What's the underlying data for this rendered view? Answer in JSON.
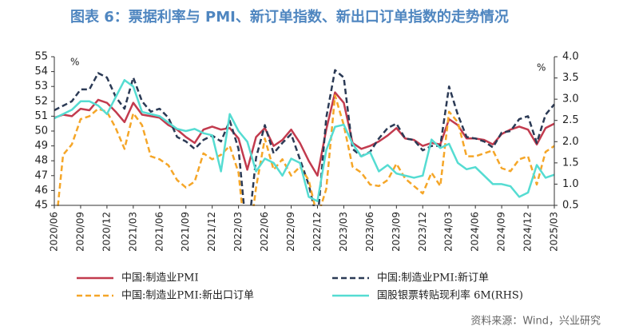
{
  "chart_data": {
    "type": "line",
    "title": "图表 6：票据利率与 PMI、新订单指数、新出口订单指数的走势情况",
    "source": "资料来源：Wind，兴业研究",
    "y_unit": "%",
    "y2_unit": "%",
    "categories": [
      "2020/06",
      null,
      null,
      "2020/09",
      null,
      null,
      "2020/12",
      null,
      null,
      "2021/03",
      null,
      null,
      "2021/06",
      null,
      null,
      "2021/09",
      null,
      null,
      "2021/12",
      null,
      null,
      "2022/03",
      null,
      null,
      "2022/06",
      null,
      null,
      "2022/09",
      null,
      null,
      "2022/12",
      null,
      null,
      "2023/03",
      null,
      null,
      "2023/06",
      null,
      null,
      "2023/09",
      null,
      null,
      "2023/12",
      null,
      null,
      "2024/03",
      null,
      null,
      "2024/06",
      null,
      null,
      "2024/09",
      null,
      null,
      "2024/12",
      null,
      null,
      "2025/03"
    ],
    "ylim": [
      45,
      55
    ],
    "yticks": [
      45,
      46,
      47,
      48,
      49,
      50,
      51,
      52,
      53,
      54,
      55
    ],
    "y2lim": [
      0.5,
      4.0
    ],
    "y2ticks": [
      0.5,
      {
        "value": 1.0,
        "label": "1.0"
      },
      1.5,
      {
        "value": 2.0,
        "label": "2.0"
      },
      2.5,
      {
        "value": 3.0,
        "label": "3.0"
      },
      3.5,
      {
        "value": 4.0,
        "label": "4.0"
      }
    ],
    "series": [
      {
        "name": "中国:制造业PMI",
        "color": "#c23b4e",
        "dash": false,
        "values": [
          50.9,
          51.1,
          51.0,
          51.5,
          51.4,
          52.1,
          51.9,
          51.3,
          50.6,
          51.9,
          51.1,
          51.0,
          50.9,
          50.4,
          50.1,
          49.6,
          49.2,
          50.1,
          50.3,
          50.1,
          50.2,
          49.5,
          47.4,
          49.6,
          50.2,
          49.0,
          49.4,
          50.1,
          49.2,
          48.0,
          47.0,
          50.1,
          52.6,
          51.9,
          49.2,
          48.8,
          49.0,
          49.3,
          49.7,
          50.2,
          49.5,
          49.4,
          49.0,
          49.2,
          49.1,
          50.8,
          50.4,
          49.5,
          49.5,
          49.4,
          49.1,
          49.8,
          50.1,
          50.3,
          50.1,
          49.1,
          50.2,
          50.5
        ]
      },
      {
        "name": "中国:制造业PMI:新订单",
        "color": "#2b3a55",
        "dash": true,
        "values": [
          51.4,
          51.7,
          52.0,
          52.8,
          52.8,
          53.9,
          53.6,
          52.3,
          51.5,
          53.6,
          52.0,
          51.3,
          51.5,
          50.9,
          49.6,
          49.3,
          48.8,
          49.4,
          49.7,
          49.3,
          50.7,
          48.8,
          42.6,
          48.2,
          50.4,
          48.5,
          49.2,
          49.8,
          48.1,
          46.4,
          43.9,
          50.9,
          54.1,
          53.6,
          48.8,
          48.3,
          48.6,
          49.5,
          50.2,
          50.5,
          49.5,
          49.4,
          48.7,
          49.0,
          49.0,
          53.0,
          51.1,
          49.6,
          49.5,
          49.3,
          48.9,
          49.9,
          50.0,
          50.8,
          51.0,
          49.2,
          51.1,
          51.8
        ]
      },
      {
        "name": "中国:制造业PMI:新出口订单",
        "color": "#f5a628",
        "dash": true,
        "values": [
          42.6,
          48.4,
          49.1,
          50.8,
          51.0,
          51.5,
          51.3,
          50.2,
          48.8,
          51.2,
          50.4,
          48.3,
          48.1,
          47.7,
          46.7,
          46.2,
          46.6,
          48.5,
          48.1,
          48.4,
          49.0,
          47.2,
          41.6,
          46.2,
          49.5,
          47.4,
          48.1,
          47.0,
          47.6,
          46.7,
          44.2,
          46.1,
          52.4,
          50.4,
          47.6,
          47.2,
          46.4,
          46.3,
          46.7,
          47.8,
          46.8,
          46.3,
          45.8,
          47.2,
          46.3,
          51.3,
          50.6,
          48.3,
          48.3,
          48.5,
          48.7,
          47.5,
          47.3,
          48.1,
          48.3,
          46.4,
          48.6,
          49.0
        ]
      },
      {
        "name": "国股银票转贴现利率 6M(RHS)",
        "color": "#55dcd2",
        "dash": false,
        "axis": "y2",
        "values": [
          2.55,
          2.65,
          2.75,
          2.95,
          2.95,
          2.85,
          2.65,
          3.05,
          3.45,
          3.3,
          2.7,
          2.65,
          2.6,
          2.45,
          2.3,
          2.25,
          2.3,
          2.2,
          2.15,
          1.3,
          2.65,
          2.25,
          2.0,
          1.3,
          1.6,
          1.5,
          1.2,
          1.6,
          1.5,
          0.7,
          0.6,
          1.8,
          2.35,
          2.4,
          1.95,
          1.65,
          1.75,
          1.3,
          1.45,
          1.25,
          1.2,
          1.15,
          1.2,
          2.05,
          1.85,
          1.95,
          1.5,
          1.35,
          1.4,
          1.2,
          1.0,
          1.0,
          0.95,
          0.7,
          0.8,
          1.45,
          1.15,
          1.22
        ]
      }
    ]
  }
}
